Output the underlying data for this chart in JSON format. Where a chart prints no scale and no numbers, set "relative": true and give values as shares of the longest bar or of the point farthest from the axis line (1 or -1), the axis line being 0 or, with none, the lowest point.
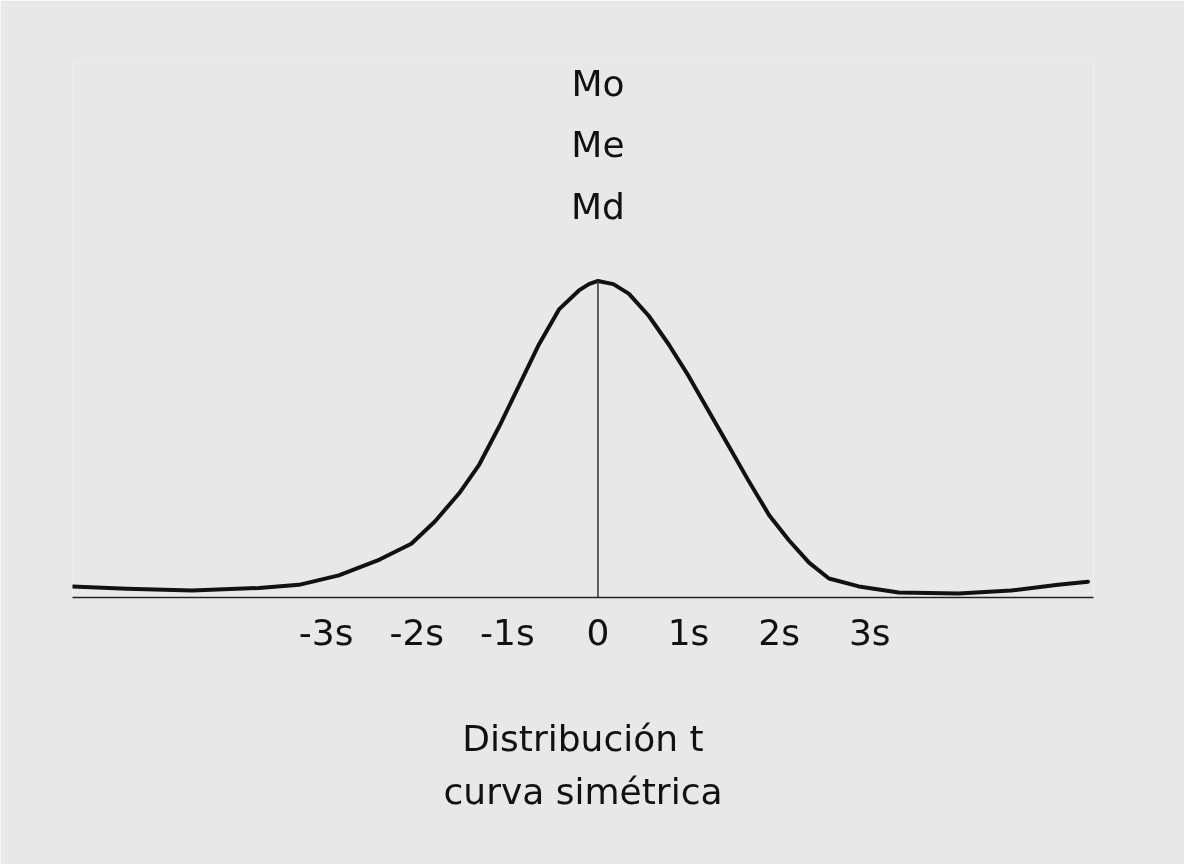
{
  "chart_data": {
    "type": "line",
    "relative": true,
    "x": [
      -5.8,
      -5.2,
      -4.48,
      -3.74,
      -3.3,
      -2.86,
      -2.41,
      -2.06,
      -1.8,
      -1.53,
      -1.31,
      -1.09,
      -0.87,
      -0.65,
      -0.43,
      -0.21,
      -0.1,
      0,
      0.17,
      0.34,
      0.56,
      0.78,
      1.0,
      1.22,
      1.44,
      1.66,
      1.89,
      2.11,
      2.33,
      2.55,
      2.88,
      3.32,
      3.98,
      4.56,
      5.08,
      5.41
    ],
    "series": [
      {
        "color": "#111111",
        "values": [
          0.035,
          0.028,
          0.022,
          0.03,
          0.04,
          0.07,
          0.12,
          0.17,
          0.24,
          0.33,
          0.42,
          0.54,
          0.67,
          0.8,
          0.91,
          0.97,
          0.99,
          1.0,
          0.99,
          0.96,
          0.89,
          0.8,
          0.7,
          0.59,
          0.48,
          0.37,
          0.26,
          0.18,
          0.11,
          0.06,
          0.035,
          0.016,
          0.013,
          0.022,
          0.04,
          0.05
        ]
      }
    ],
    "xlim": [
      -5.8,
      5.47
    ],
    "xticks": [
      {
        "value": -3,
        "label": "-3s"
      },
      {
        "value": -2,
        "label": "-2s"
      },
      {
        "value": -1,
        "label": "-1s"
      },
      0,
      {
        "value": 1,
        "label": "1s"
      },
      {
        "value": 2,
        "label": "2s"
      },
      {
        "value": 3,
        "label": "3s"
      }
    ],
    "tick_labels": "x",
    "ref_lines": [
      {
        "axis": "x",
        "value": 0,
        "label": "Mo\nMe\nMd",
        "color": "#333333"
      }
    ],
    "xlabel": "Distribución t\ncurva simétrica"
  }
}
